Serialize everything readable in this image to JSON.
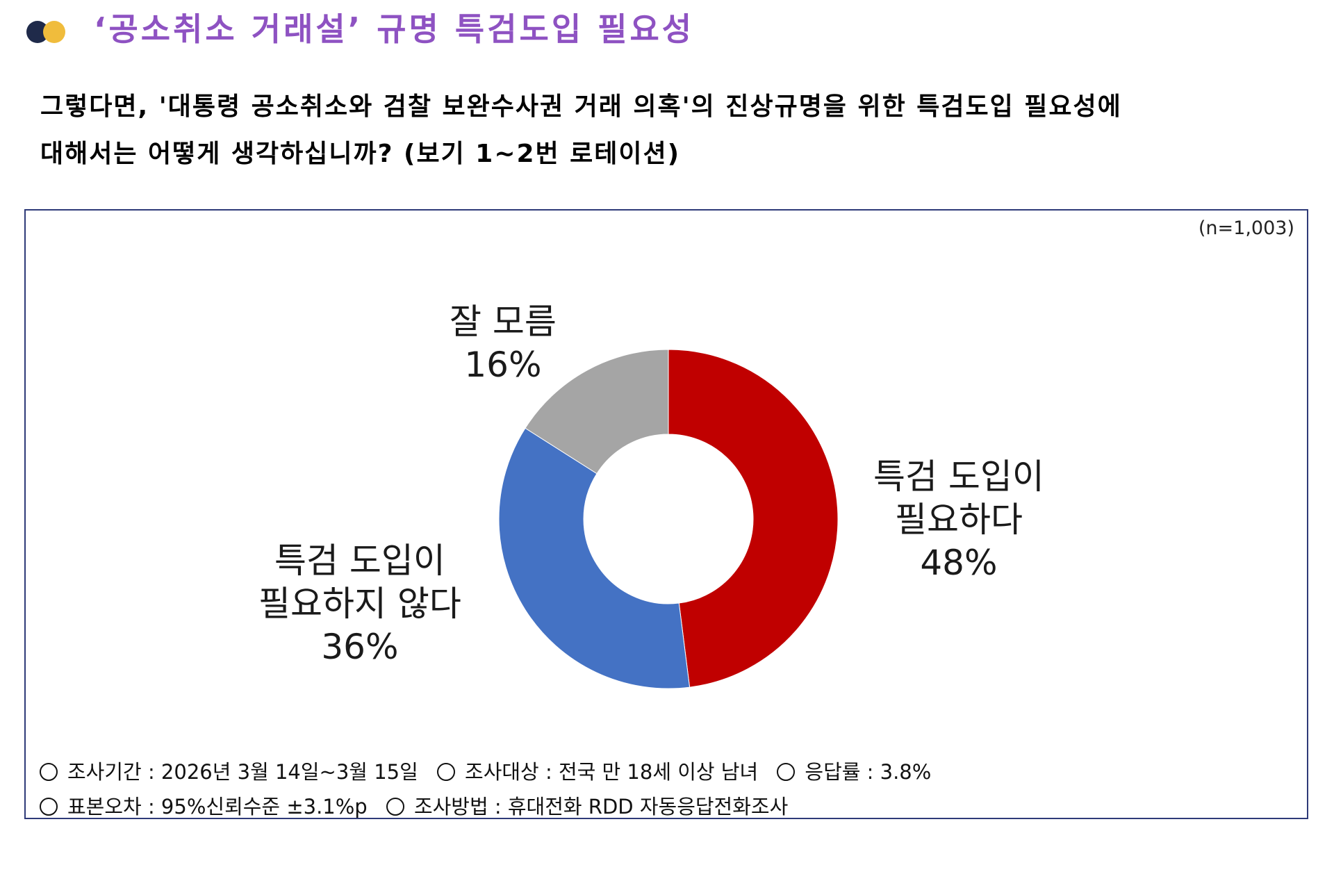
{
  "header": {
    "title": "‘공소취소 거래설’ 규명 특검도입 필요성"
  },
  "question": {
    "line1": "그렇다면, '대통령 공소취소와 검찰 보완수사권 거래 의혹'의 진상규명을 위한 특검도입 필요성에",
    "line2": "대해서는 어떻게 생각하십니까?   (보기 1~2번 로테이션)"
  },
  "sample_size": "(n=1,003)",
  "chart_data": {
    "type": "pie",
    "donut": true,
    "start_angle_deg": 0,
    "direction": "clockwise",
    "slices": [
      {
        "id": "need",
        "label_lines": [
          "특검 도입이",
          "필요하다"
        ],
        "value": 48,
        "value_text": "48%",
        "color": "#c00000"
      },
      {
        "id": "not_need",
        "label_lines": [
          "특검 도입이",
          "필요하지 않다"
        ],
        "value": 36,
        "value_text": "36%",
        "color": "#4472c4"
      },
      {
        "id": "dont_know",
        "label_lines": [
          "잘 모름"
        ],
        "value": 16,
        "value_text": "16%",
        "color": "#a5a5a5"
      }
    ]
  },
  "footnotes": {
    "period": "조사기간 : 2026년 3월 14일~3월 15일",
    "target": "조사대상 : 전국 만 18세 이상 남녀",
    "response_rate": "응답률 : 3.8%",
    "margin": "표본오차 : 95%신뢰수준 ±3.1%p",
    "method": "조사방법 : 휴대전화 RDD 자동응답전화조사"
  }
}
